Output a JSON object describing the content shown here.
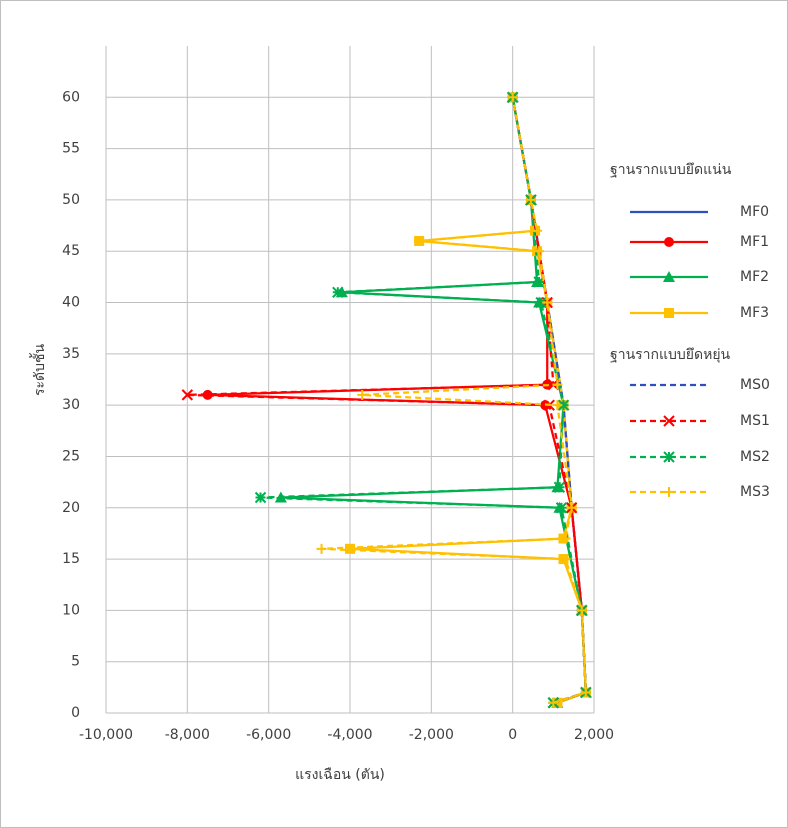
{
  "chart_data": {
    "type": "line",
    "x_label": "แรงเฉือน (ตัน)",
    "y_label": "ระดับชั้น",
    "xlim": [
      -10000,
      2000
    ],
    "ylim": [
      0,
      65
    ],
    "xticks": [
      {
        "value": -10000,
        "label": "-10,000"
      },
      {
        "value": -8000,
        "label": "-8,000"
      },
      {
        "value": -6000,
        "label": "-6,000"
      },
      {
        "value": -4000,
        "label": "-4,000"
      },
      {
        "value": -2000,
        "label": "-2,000"
      },
      0,
      {
        "value": 2000,
        "label": "2,000"
      }
    ],
    "yticks": [
      0,
      5,
      10,
      15,
      20,
      25,
      30,
      35,
      40,
      45,
      50,
      55,
      60
    ],
    "grid": true,
    "legend_groups": [
      "ฐานรากแบบยึดแน่น",
      "ฐานรากแบบยึดหยุ่น"
    ],
    "series": [
      {
        "name": "MF0",
        "color": "#2f4fbf",
        "line_style": "solid",
        "marker": "none",
        "x": [
          1100,
          1800,
          1700,
          1450,
          1250,
          850,
          450,
          0
        ],
        "y": [
          1,
          2,
          10,
          20,
          30,
          40,
          50,
          60
        ]
      },
      {
        "name": "MF1",
        "color": "#ff0000",
        "line_style": "solid",
        "marker": "circle",
        "x": [
          1100,
          1800,
          1700,
          1450,
          800,
          -7500,
          850,
          850,
          450,
          0
        ],
        "y": [
          1,
          2,
          10,
          20,
          30,
          31,
          32,
          40,
          50,
          60
        ]
      },
      {
        "name": "MF2",
        "color": "#00b050",
        "line_style": "solid",
        "marker": "triangle",
        "x": [
          1100,
          1800,
          1700,
          1150,
          -5700,
          1100,
          1250,
          650,
          -4200,
          600,
          450,
          0
        ],
        "y": [
          1,
          2,
          10,
          20,
          21,
          22,
          30,
          40,
          41,
          42,
          50,
          60
        ]
      },
      {
        "name": "MF3",
        "color": "#ffc000",
        "line_style": "solid",
        "marker": "square",
        "x": [
          1100,
          1800,
          1700,
          1250,
          -4000,
          1250,
          1450,
          1250,
          850,
          600,
          -2300,
          550,
          450,
          0
        ],
        "y": [
          1,
          2,
          10,
          15,
          16,
          17,
          20,
          30,
          40,
          45,
          46,
          47,
          50,
          60
        ]
      },
      {
        "name": "MS0",
        "color": "#2f4fbf",
        "line_style": "dashed",
        "marker": "none",
        "x": [
          1000,
          1800,
          1700,
          1450,
          1250,
          850,
          450,
          0
        ],
        "y": [
          1,
          2,
          10,
          20,
          30,
          40,
          50,
          60
        ]
      },
      {
        "name": "MS1",
        "color": "#ff0000",
        "line_style": "dashed",
        "marker": "x",
        "x": [
          1000,
          1800,
          1700,
          1450,
          900,
          -8000,
          1000,
          850,
          450,
          0
        ],
        "y": [
          1,
          2,
          10,
          20,
          30,
          31,
          32,
          40,
          50,
          60
        ]
      },
      {
        "name": "MS2",
        "color": "#00b050",
        "line_style": "dashed",
        "marker": "asterisk",
        "x": [
          1000,
          1800,
          1700,
          1200,
          -6200,
          1150,
          1250,
          700,
          -4300,
          650,
          450,
          0
        ],
        "y": [
          1,
          2,
          10,
          20,
          21,
          22,
          30,
          40,
          41,
          42,
          50,
          60
        ]
      },
      {
        "name": "MS3",
        "color": "#ffc000",
        "line_style": "dashed",
        "marker": "plus",
        "x": [
          1000,
          1800,
          1700,
          1300,
          -4700,
          1300,
          1450,
          1100,
          -3700,
          1100,
          850,
          650,
          -2300,
          600,
          450,
          0
        ],
        "y": [
          1,
          2,
          10,
          15,
          16,
          17,
          20,
          30,
          31,
          32,
          40,
          45,
          46,
          47,
          50,
          60
        ]
      }
    ]
  }
}
